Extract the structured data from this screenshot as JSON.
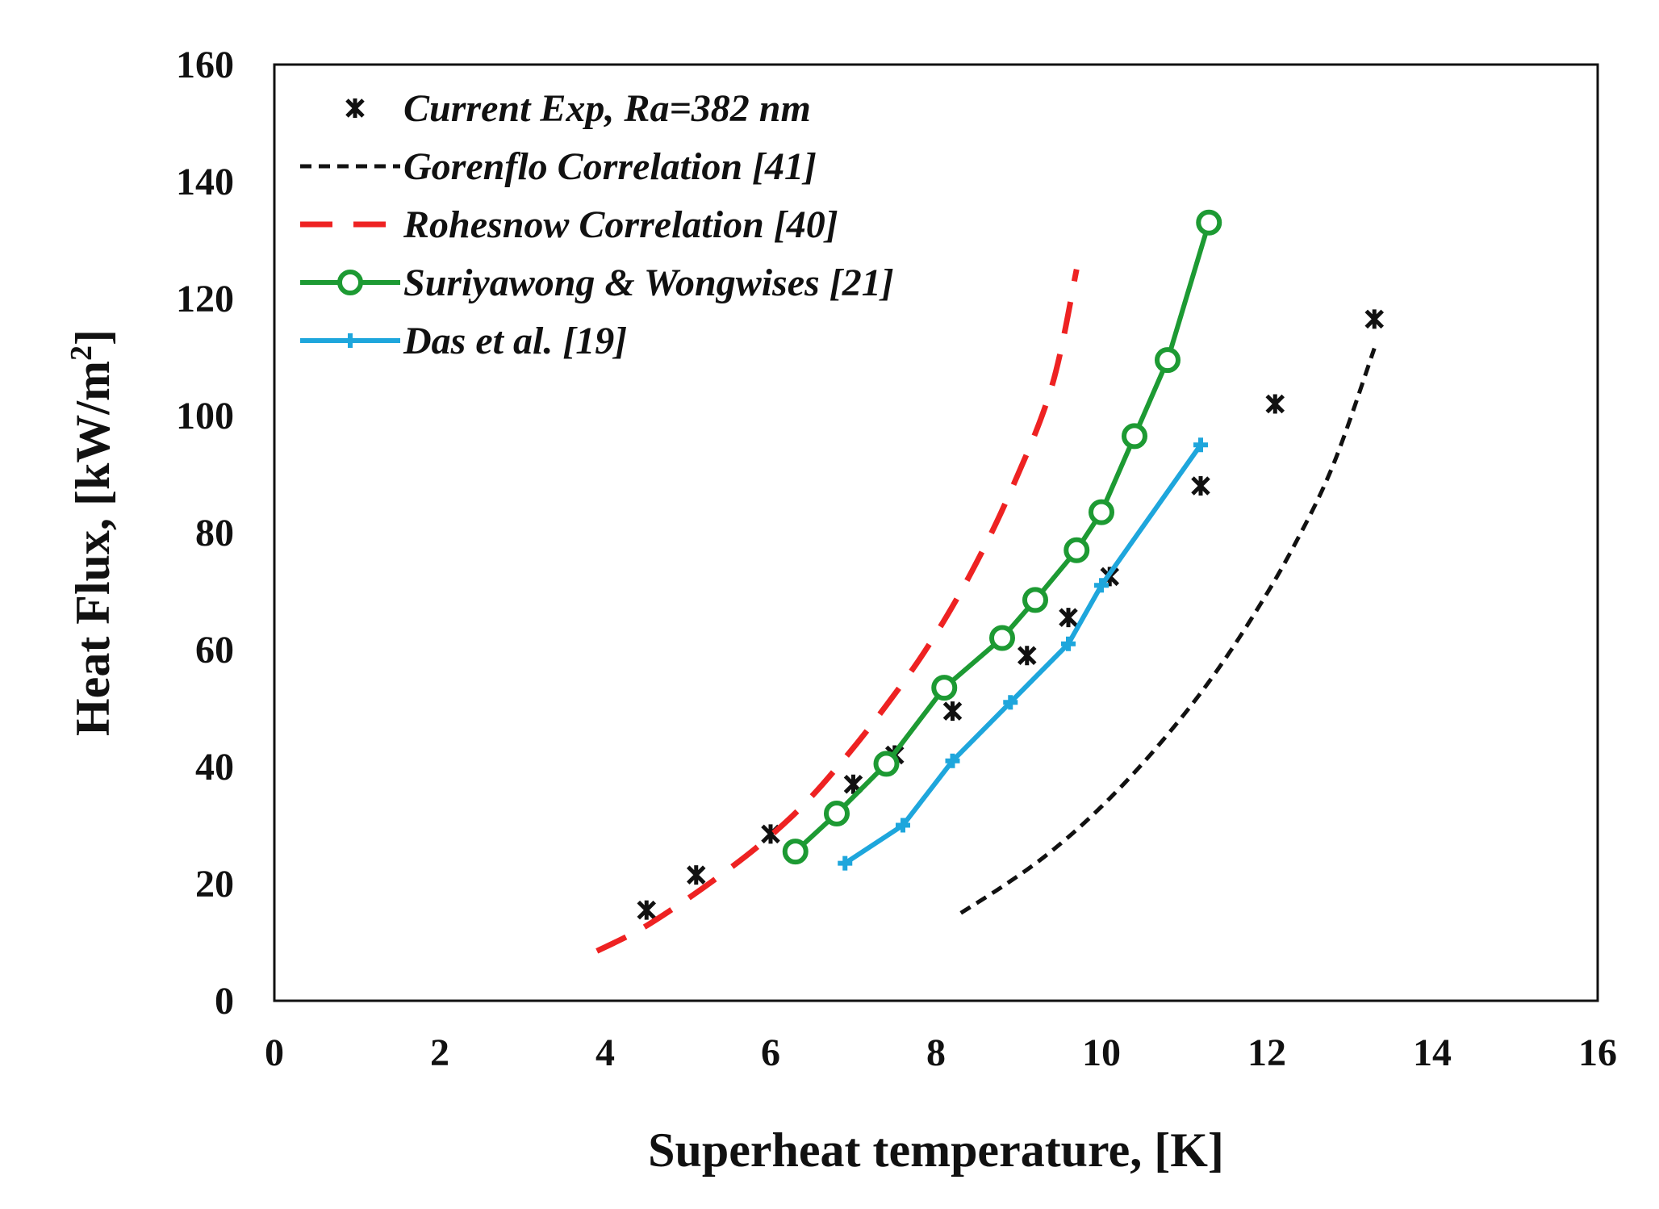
{
  "chart_data": {
    "type": "line",
    "title": "",
    "xlabel": "Superheat temperature, [K]",
    "ylabel_main": "Heat Flux, [kW/m",
    "ylabel_sup": "2",
    "ylabel_end": "]",
    "xlim": [
      0,
      16
    ],
    "ylim": [
      0,
      160
    ],
    "xticks": [
      0,
      2,
      4,
      6,
      8,
      10,
      12,
      14,
      16
    ],
    "yticks": [
      0,
      20,
      40,
      60,
      80,
      100,
      120,
      140,
      160
    ],
    "xtick_labels": [
      "0",
      "2",
      "4",
      "6",
      "8",
      "10",
      "12",
      "14",
      "16"
    ],
    "ytick_labels": [
      "0",
      "20",
      "40",
      "60",
      "80",
      "100",
      "120",
      "140",
      "160"
    ],
    "grid": false,
    "legend_position": "top-left",
    "series": [
      {
        "name": "Current Exp, Ra=382 nm",
        "style": "markers",
        "marker": "asterisk",
        "color": "#111111",
        "x": [
          4.5,
          5.1,
          6.0,
          7.0,
          7.5,
          8.2,
          9.1,
          9.6,
          10.1,
          11.2,
          12.1,
          13.3
        ],
        "y": [
          15.5,
          21.5,
          28.5,
          37,
          42,
          49.5,
          59,
          65.5,
          72.5,
          88,
          102,
          116.5
        ]
      },
      {
        "name": "Gorenflo Correlation [41]",
        "style": "dashed-fine",
        "color": "#111111",
        "x": [
          8.3,
          8.8,
          9.3,
          9.8,
          10.3,
          10.8,
          11.3,
          11.8,
          12.3,
          12.8,
          13.3
        ],
        "y": [
          15,
          19.5,
          24.5,
          30.5,
          37.5,
          45.5,
          54.5,
          65,
          77,
          91.5,
          111.5
        ]
      },
      {
        "name": "Rohesnow Correlation [40]",
        "style": "dashed-long",
        "color": "#ee2222",
        "x": [
          3.9,
          4.4,
          4.9,
          5.4,
          5.9,
          6.4,
          6.9,
          7.4,
          7.9,
          8.4,
          8.9,
          9.4,
          9.7
        ],
        "y": [
          8.5,
          12,
          16.5,
          21.5,
          27,
          33.5,
          41.5,
          50.5,
          60.5,
          72.5,
          87,
          105,
          125
        ]
      },
      {
        "name": "Suriyawong & Wongwises [21]",
        "style": "line-circles",
        "color": "#1d9a33",
        "x": [
          6.3,
          6.8,
          7.4,
          8.1,
          8.8,
          9.2,
          9.7,
          10.0,
          10.4,
          10.8,
          11.3
        ],
        "y": [
          25.5,
          32,
          40.5,
          53.5,
          62,
          68.5,
          77,
          83.5,
          96.5,
          109.5,
          133
        ]
      },
      {
        "name": "Das et al. [19]",
        "style": "line-plus",
        "color": "#1ea6dc",
        "x": [
          6.9,
          7.6,
          8.2,
          8.9,
          9.6,
          10.0,
          11.2
        ],
        "y": [
          23.5,
          30,
          41,
          51,
          61,
          71,
          95
        ]
      }
    ]
  }
}
